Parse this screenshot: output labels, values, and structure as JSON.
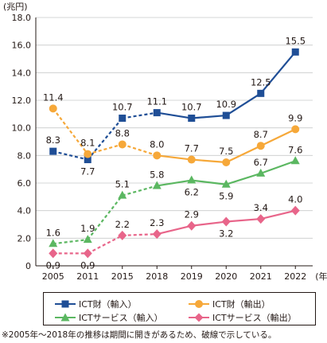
{
  "chart_data": {
    "type": "line",
    "unit_label": "(兆円)",
    "x_suffix": "(年)",
    "categories": [
      "2005",
      "2011",
      "2015",
      "2018",
      "2019",
      "2020",
      "2021",
      "2022"
    ],
    "dashed_until_index": 2,
    "ylim": [
      0,
      18
    ],
    "yticks": [
      "0",
      "2.0",
      "4.0",
      "6.0",
      "8.0",
      "10.0",
      "12.0",
      "14.0",
      "16.0",
      "18.0"
    ],
    "series": [
      {
        "name": "ICT財（輸入）",
        "color": "#1f4e96",
        "marker": "square",
        "values": [
          8.3,
          7.7,
          10.7,
          11.1,
          10.7,
          10.9,
          12.5,
          15.5
        ],
        "labels": [
          "8.3",
          "7.7",
          "10.7",
          "11.1",
          "10.7",
          "10.9",
          "12.5",
          "15.5"
        ]
      },
      {
        "name": "ICT財（輸出）",
        "color": "#f6a839",
        "marker": "circle",
        "values": [
          11.4,
          8.1,
          8.8,
          8.0,
          7.7,
          7.5,
          8.7,
          9.9
        ],
        "labels": [
          "11.4",
          "8.1",
          "8.8",
          "8.0",
          "7.7",
          "7.5",
          "8.7",
          "9.9"
        ]
      },
      {
        "name": "ICTサービス（輸入）",
        "color": "#5bb761",
        "marker": "triangle",
        "values": [
          1.6,
          1.9,
          5.1,
          5.8,
          6.2,
          5.9,
          6.7,
          7.6
        ],
        "labels": [
          "1.6",
          "1.9",
          "5.1",
          "5.8",
          "6.2",
          "5.9",
          "6.7",
          "7.6"
        ]
      },
      {
        "name": "ICTサービス（輸出）",
        "color": "#e8658a",
        "marker": "diamond",
        "values": [
          0.9,
          0.9,
          2.2,
          2.3,
          2.9,
          3.2,
          3.4,
          4.0
        ],
        "labels": [
          "0.9",
          "0.9",
          "2.2",
          "2.3",
          "2.9",
          "3.2",
          "3.4",
          "4.0"
        ]
      }
    ]
  },
  "footnote": "※2005年～2018年の推移は期間に開きがあるため、破線で示している。"
}
